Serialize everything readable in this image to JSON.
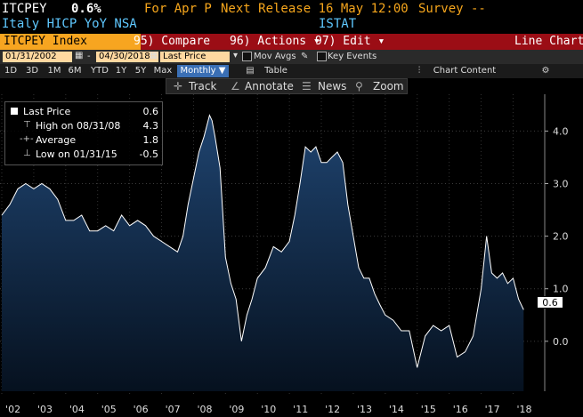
{
  "header": {
    "ticker": "ITCPEY",
    "last_value": "0.6%",
    "for_period": "For Apr P",
    "next_release": "Next Release 16 May 12:00",
    "survey": "Survey --",
    "description": "Italy HICP YoY NSA",
    "source": "ISTAT"
  },
  "command_bar": {
    "security": "ITCPEY Index",
    "compare": "95) Compare",
    "actions": "96) Actions ▾",
    "edit": "97) Edit ▾",
    "chart_type": "Line Chart"
  },
  "range_bar": {
    "start_date": "01/31/2002",
    "end_date": "04/30/2018",
    "separator": "-",
    "field": "Last Price",
    "mov_avgs": "Mov Avgs",
    "key_events": "Key Events"
  },
  "period_bar": {
    "periods": [
      "1D",
      "3D",
      "1M",
      "6M",
      "YTD",
      "1Y",
      "5Y",
      "Max"
    ],
    "frequency": "Monthly ▼",
    "table": "Table",
    "chart_content": "Chart Content"
  },
  "toolbar": {
    "track": "Track",
    "annotate": "Annotate",
    "news": "News",
    "zoom": "Zoom"
  },
  "legend": {
    "rows": [
      {
        "label": "Last Price",
        "value": "0.6"
      },
      {
        "label": "High on 08/31/08",
        "value": "4.3"
      },
      {
        "label": "Average",
        "value": "1.8"
      },
      {
        "label": "Low on 01/31/15",
        "value": "-0.5"
      }
    ]
  },
  "last_label": "0.6",
  "colors": {
    "amber": "#f6a61c",
    "ticker_bar": "#f7a520",
    "command_bar": "#9b0d15",
    "selected": "#3a6fb5",
    "series_line": "#ffffff"
  },
  "chart_data": {
    "type": "area",
    "x_tick_labels": [
      "'02",
      "'03",
      "'04",
      "'05",
      "'06",
      "'07",
      "'08",
      "'09",
      "'10",
      "'11",
      "'12",
      "'13",
      "'14",
      "'15",
      "'16",
      "'17",
      "'18"
    ],
    "y_tick_labels": [
      "0.0",
      "1.0",
      "2.0",
      "3.0",
      "4.0"
    ],
    "ylim": [
      -0.95,
      4.7
    ],
    "y_ticks": [
      0,
      1,
      2,
      3,
      4
    ],
    "xlim": [
      2002.0,
      2018.6
    ],
    "grid": true,
    "series": [
      {
        "x": [
          2002.0,
          2002.25,
          2002.5,
          2002.75,
          2003.0,
          2003.25,
          2003.5,
          2003.75,
          2004.0,
          2004.25,
          2004.5,
          2004.75,
          2005.0,
          2005.25,
          2005.5,
          2005.75,
          2006.0,
          2006.25,
          2006.5,
          2006.75,
          2007.0,
          2007.25,
          2007.5,
          2007.67,
          2007.83,
          2008.0,
          2008.17,
          2008.33,
          2008.5,
          2008.58,
          2008.67,
          2008.83,
          2009.0,
          2009.17,
          2009.33,
          2009.5,
          2009.67,
          2009.83,
          2010.0,
          2010.25,
          2010.5,
          2010.75,
          2011.0,
          2011.17,
          2011.33,
          2011.5,
          2011.67,
          2011.83,
          2012.0,
          2012.17,
          2012.33,
          2012.5,
          2012.67,
          2012.83,
          2013.0,
          2013.17,
          2013.33,
          2013.5,
          2013.67,
          2013.83,
          2014.0,
          2014.25,
          2014.5,
          2014.75,
          2015.0,
          2015.25,
          2015.5,
          2015.75,
          2016.0,
          2016.25,
          2016.5,
          2016.75,
          2017.0,
          2017.17,
          2017.33,
          2017.5,
          2017.67,
          2017.83,
          2018.0,
          2018.17,
          2018.33
        ],
        "y": [
          2.4,
          2.6,
          2.9,
          3.0,
          2.9,
          3.0,
          2.9,
          2.7,
          2.3,
          2.3,
          2.4,
          2.1,
          2.1,
          2.2,
          2.1,
          2.4,
          2.2,
          2.3,
          2.2,
          2.0,
          1.9,
          1.8,
          1.7,
          2.0,
          2.6,
          3.1,
          3.6,
          3.9,
          4.3,
          4.2,
          3.9,
          3.3,
          1.6,
          1.1,
          0.8,
          0.0,
          0.5,
          0.8,
          1.2,
          1.4,
          1.8,
          1.7,
          1.9,
          2.4,
          3.0,
          3.7,
          3.6,
          3.7,
          3.4,
          3.4,
          3.5,
          3.6,
          3.4,
          2.6,
          2.0,
          1.4,
          1.2,
          1.2,
          0.9,
          0.7,
          0.5,
          0.4,
          0.2,
          0.2,
          -0.5,
          0.1,
          0.3,
          0.2,
          0.3,
          -0.3,
          -0.2,
          0.1,
          1.0,
          2.0,
          1.3,
          1.2,
          1.3,
          1.1,
          1.2,
          0.8,
          0.6
        ]
      }
    ]
  }
}
